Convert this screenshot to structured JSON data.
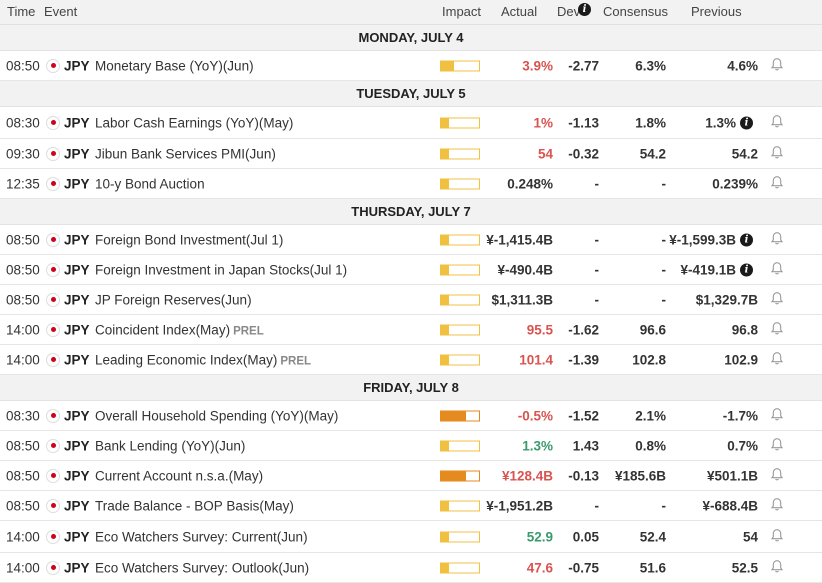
{
  "header": {
    "time": "Time",
    "event": "Event",
    "impact": "Impact",
    "actual": "Actual",
    "dev": "Dev",
    "consensus": "Consensus",
    "previous": "Previous"
  },
  "days": [
    {
      "label": "MONDAY, JULY 4",
      "rows": [
        {
          "time": "08:50",
          "ccy": "JPY",
          "event": "Monetary Base (YoY)(Jun)",
          "prel": "",
          "impact": 0.35,
          "impact_level": "medium",
          "actual": "3.9%",
          "actual_color": "red",
          "dev": "-2.77",
          "consensus": "6.3%",
          "previous": "4.6%",
          "prev_info": false
        }
      ]
    },
    {
      "label": "TUESDAY, JULY 5",
      "rows": [
        {
          "time": "08:30",
          "ccy": "JPY",
          "event": "Labor Cash Earnings (YoY)(May)",
          "prel": "",
          "impact": 0.2,
          "impact_level": "low",
          "actual": "1%",
          "actual_color": "red",
          "dev": "-1.13",
          "consensus": "1.8%",
          "previous": "1.3%",
          "prev_info": true
        },
        {
          "time": "09:30",
          "ccy": "JPY",
          "event": "Jibun Bank Services PMI(Jun)",
          "prel": "",
          "impact": 0.2,
          "impact_level": "low",
          "actual": "54",
          "actual_color": "red",
          "dev": "-0.32",
          "consensus": "54.2",
          "previous": "54.2",
          "prev_info": false
        },
        {
          "time": "12:35",
          "ccy": "JPY",
          "event": "10-y Bond Auction",
          "prel": "",
          "impact": 0.2,
          "impact_level": "low",
          "actual": "0.248%",
          "actual_color": "dark",
          "dev": "-",
          "consensus": "-",
          "previous": "0.239%",
          "prev_info": false
        }
      ]
    },
    {
      "label": "THURSDAY, JULY 7",
      "rows": [
        {
          "time": "08:50",
          "ccy": "JPY",
          "event": "Foreign Bond Investment(Jul 1)",
          "prel": "",
          "impact": 0.2,
          "impact_level": "low",
          "actual": "¥-1,415.4B",
          "actual_color": "dark",
          "dev": "-",
          "consensus": "-",
          "previous": "¥-1,599.3B",
          "prev_info": true
        },
        {
          "time": "08:50",
          "ccy": "JPY",
          "event": "Foreign Investment in Japan Stocks(Jul 1)",
          "prel": "",
          "impact": 0.2,
          "impact_level": "low",
          "actual": "¥-490.4B",
          "actual_color": "dark",
          "dev": "-",
          "consensus": "-",
          "previous": "¥-419.1B",
          "prev_info": true
        },
        {
          "time": "08:50",
          "ccy": "JPY",
          "event": "JP Foreign Reserves(Jun)",
          "prel": "",
          "impact": 0.2,
          "impact_level": "low",
          "actual": "$1,311.3B",
          "actual_color": "dark",
          "dev": "-",
          "consensus": "-",
          "previous": "$1,329.7B",
          "prev_info": false
        },
        {
          "time": "14:00",
          "ccy": "JPY",
          "event": "Coincident Index(May)",
          "prel": "PREL",
          "impact": 0.2,
          "impact_level": "low",
          "actual": "95.5",
          "actual_color": "red",
          "dev": "-1.62",
          "consensus": "96.6",
          "previous": "96.8",
          "prev_info": false
        },
        {
          "time": "14:00",
          "ccy": "JPY",
          "event": "Leading Economic Index(May)",
          "prel": "PREL",
          "impact": 0.2,
          "impact_level": "low",
          "actual": "101.4",
          "actual_color": "red",
          "dev": "-1.39",
          "consensus": "102.8",
          "previous": "102.9",
          "prev_info": false
        }
      ]
    },
    {
      "label": "FRIDAY, JULY 8",
      "rows": [
        {
          "time": "08:30",
          "ccy": "JPY",
          "event": "Overall Household Spending (YoY)(May)",
          "prel": "",
          "impact": 0.65,
          "impact_level": "high",
          "actual": "-0.5%",
          "actual_color": "red",
          "dev": "-1.52",
          "consensus": "2.1%",
          "previous": "-1.7%",
          "prev_info": false
        },
        {
          "time": "08:50",
          "ccy": "JPY",
          "event": "Bank Lending (YoY)(Jun)",
          "prel": "",
          "impact": 0.2,
          "impact_level": "low",
          "actual": "1.3%",
          "actual_color": "green",
          "dev": "1.43",
          "consensus": "0.8%",
          "previous": "0.7%",
          "prev_info": false
        },
        {
          "time": "08:50",
          "ccy": "JPY",
          "event": "Current Account n.s.a.(May)",
          "prel": "",
          "impact": 0.65,
          "impact_level": "high",
          "actual": "¥128.4B",
          "actual_color": "red",
          "dev": "-0.13",
          "consensus": "¥185.6B",
          "previous": "¥501.1B",
          "prev_info": false
        },
        {
          "time": "08:50",
          "ccy": "JPY",
          "event": "Trade Balance - BOP Basis(May)",
          "prel": "",
          "impact": 0.2,
          "impact_level": "low",
          "actual": "¥-1,951.2B",
          "actual_color": "dark",
          "dev": "-",
          "consensus": "-",
          "previous": "¥-688.4B",
          "prev_info": false
        },
        {
          "time": "14:00",
          "ccy": "JPY",
          "event": "Eco Watchers Survey: Current(Jun)",
          "prel": "",
          "impact": 0.2,
          "impact_level": "low",
          "actual": "52.9",
          "actual_color": "green",
          "dev": "0.05",
          "consensus": "52.4",
          "previous": "54",
          "prev_info": false
        },
        {
          "time": "14:00",
          "ccy": "JPY",
          "event": "Eco Watchers Survey: Outlook(Jun)",
          "prel": "",
          "impact": 0.2,
          "impact_level": "low",
          "actual": "47.6",
          "actual_color": "red",
          "dev": "-0.75",
          "consensus": "51.6",
          "previous": "52.5",
          "prev_info": false
        }
      ]
    }
  ],
  "icons": {
    "flag": "japan-flag-icon",
    "info": "info-icon",
    "bell": "bell-icon"
  },
  "colors": {
    "red": "#d9534f",
    "green": "#3a9a6e",
    "impact_low": "#f0c040",
    "impact_high": "#e58a1f"
  }
}
